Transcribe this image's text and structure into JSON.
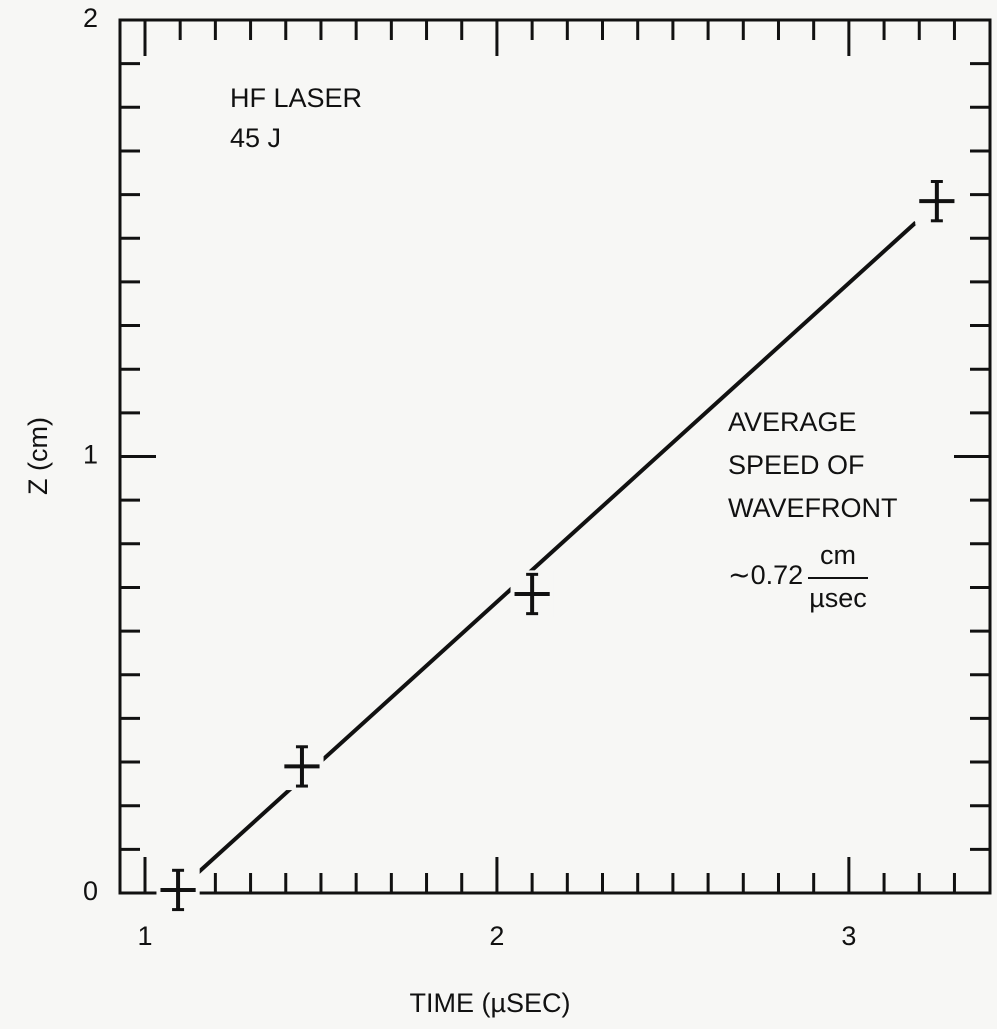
{
  "chart_data": {
    "type": "scatter",
    "xlabel": "TIME (µSEC)",
    "ylabel": "Z (cm)",
    "xlim": [
      0.929,
      3.401
    ],
    "ylim": [
      0,
      2
    ],
    "xticks": [
      1,
      2,
      3
    ],
    "yticks": [
      0,
      1,
      2
    ],
    "xminorticks": [
      1.1,
      1.2,
      1.3,
      1.4,
      1.5,
      1.6,
      1.7,
      1.8,
      1.9,
      2.1,
      2.2,
      2.3,
      2.4,
      2.5,
      2.6,
      2.7,
      2.8,
      2.9,
      3.1,
      3.2,
      3.3
    ],
    "yminorticks": [
      0.1,
      0.2,
      0.3,
      0.4,
      0.5,
      0.6,
      0.7,
      0.8,
      0.9,
      1.1,
      1.2,
      1.3,
      1.4,
      1.5,
      1.6,
      1.7,
      1.8,
      1.9
    ],
    "series": [
      {
        "color": "#111111",
        "x": [
          1.094,
          1.446,
          2.1,
          3.25
        ],
        "y": [
          0.007,
          0.29,
          0.685,
          1.585
        ],
        "xerr": [
          0.05,
          0.05,
          0.05,
          0.05
        ],
        "yerr": [
          0.045,
          0.045,
          0.045,
          0.045
        ]
      }
    ],
    "fit": {
      "x": [
        1.128,
        3.19
      ],
      "y": [
        0.03,
        1.536
      ],
      "color": "#111111"
    },
    "annotations": [
      "HF LASER",
      "45 J",
      "AVERAGE",
      "SPEED OF",
      "WAVEFRONT",
      "∼0.72",
      "cm",
      "µsec"
    ]
  }
}
